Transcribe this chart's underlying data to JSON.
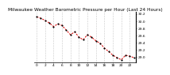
{
  "title": "Milwaukee Weather Barometric Pressure per Hour (Last 24 Hours)",
  "hours": [
    0,
    1,
    2,
    3,
    4,
    5,
    6,
    7,
    8,
    9,
    10,
    11,
    12,
    13,
    14,
    15,
    16,
    17,
    18,
    19,
    20,
    21,
    22,
    23
  ],
  "pressure": [
    30.12,
    30.08,
    30.02,
    29.95,
    29.85,
    29.92,
    29.88,
    29.75,
    29.62,
    29.7,
    29.55,
    29.48,
    29.62,
    29.55,
    29.45,
    29.38,
    29.25,
    29.15,
    29.05,
    28.98,
    28.92,
    29.05,
    29.02,
    28.98
  ],
  "ylim": [
    28.85,
    30.25
  ],
  "ytick_values": [
    29.0,
    29.2,
    29.4,
    29.6,
    29.8,
    30.0,
    30.2
  ],
  "ytick_labels": [
    "29.0",
    "29.2",
    "29.4",
    "29.6",
    "29.8",
    "30.0",
    "30.2"
  ],
  "xtick_positions": [
    0,
    2,
    4,
    6,
    8,
    10,
    12,
    14,
    16,
    18,
    20,
    22
  ],
  "line_color": "#dd0000",
  "marker_color": "#000000",
  "bg_color": "#ffffff",
  "grid_color": "#999999",
  "title_fontsize": 4.2,
  "tick_fontsize": 3.2,
  "linewidth": 0.7,
  "markersize": 2.0
}
